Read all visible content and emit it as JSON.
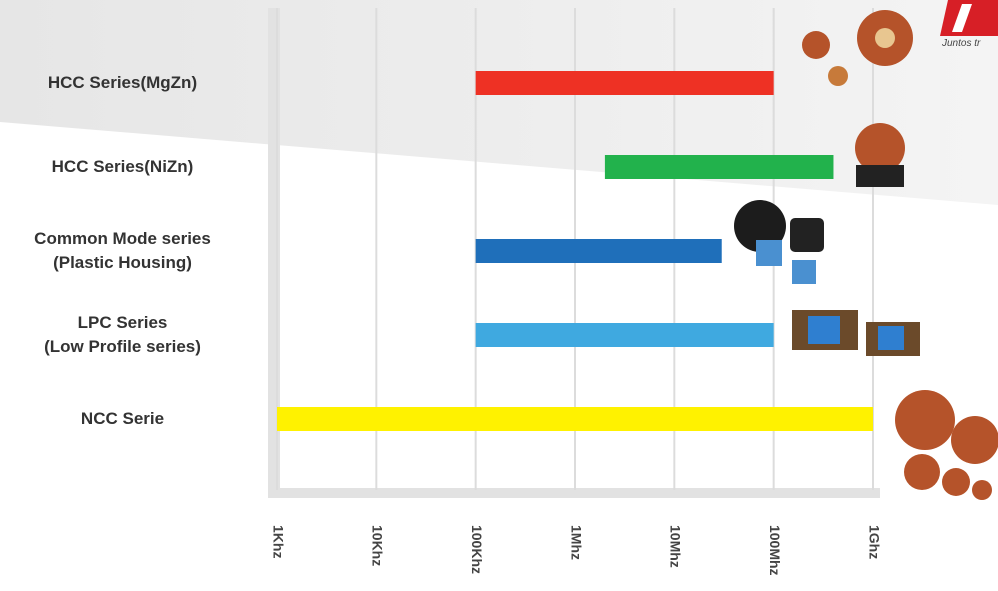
{
  "chart_data": {
    "type": "range-bar",
    "categories": [
      "HCC Series(MgZn)",
      "HCC Series(NiZn)",
      "Common Mode series\n(Plastic Housing)",
      "LPC Series\n(Low Profile series)",
      "NCC Serie"
    ],
    "starts": [
      100000,
      2000000,
      100000,
      100000,
      1000
    ],
    "ends": [
      100000000,
      400000000,
      30000000,
      100000000,
      1000000000
    ],
    "colors": [
      "#ee3124",
      "#22b24c",
      "#1f6fba",
      "#3fa9e0",
      "#fff200"
    ],
    "xscale": "log",
    "xlim": [
      1000,
      1000000000
    ],
    "xticks": [
      {
        "value": 1000,
        "label": "1Khz"
      },
      {
        "value": 10000,
        "label": "10Khz"
      },
      {
        "value": 100000,
        "label": "100Khz"
      },
      {
        "value": 1000000,
        "label": "1Mhz"
      },
      {
        "value": 10000000,
        "label": "10Mhz"
      },
      {
        "value": 100000000,
        "label": "100Mhz"
      },
      {
        "value": 1000000000,
        "label": "1Ghz"
      }
    ],
    "grid": true
  },
  "logo_text": "Juntos tr"
}
